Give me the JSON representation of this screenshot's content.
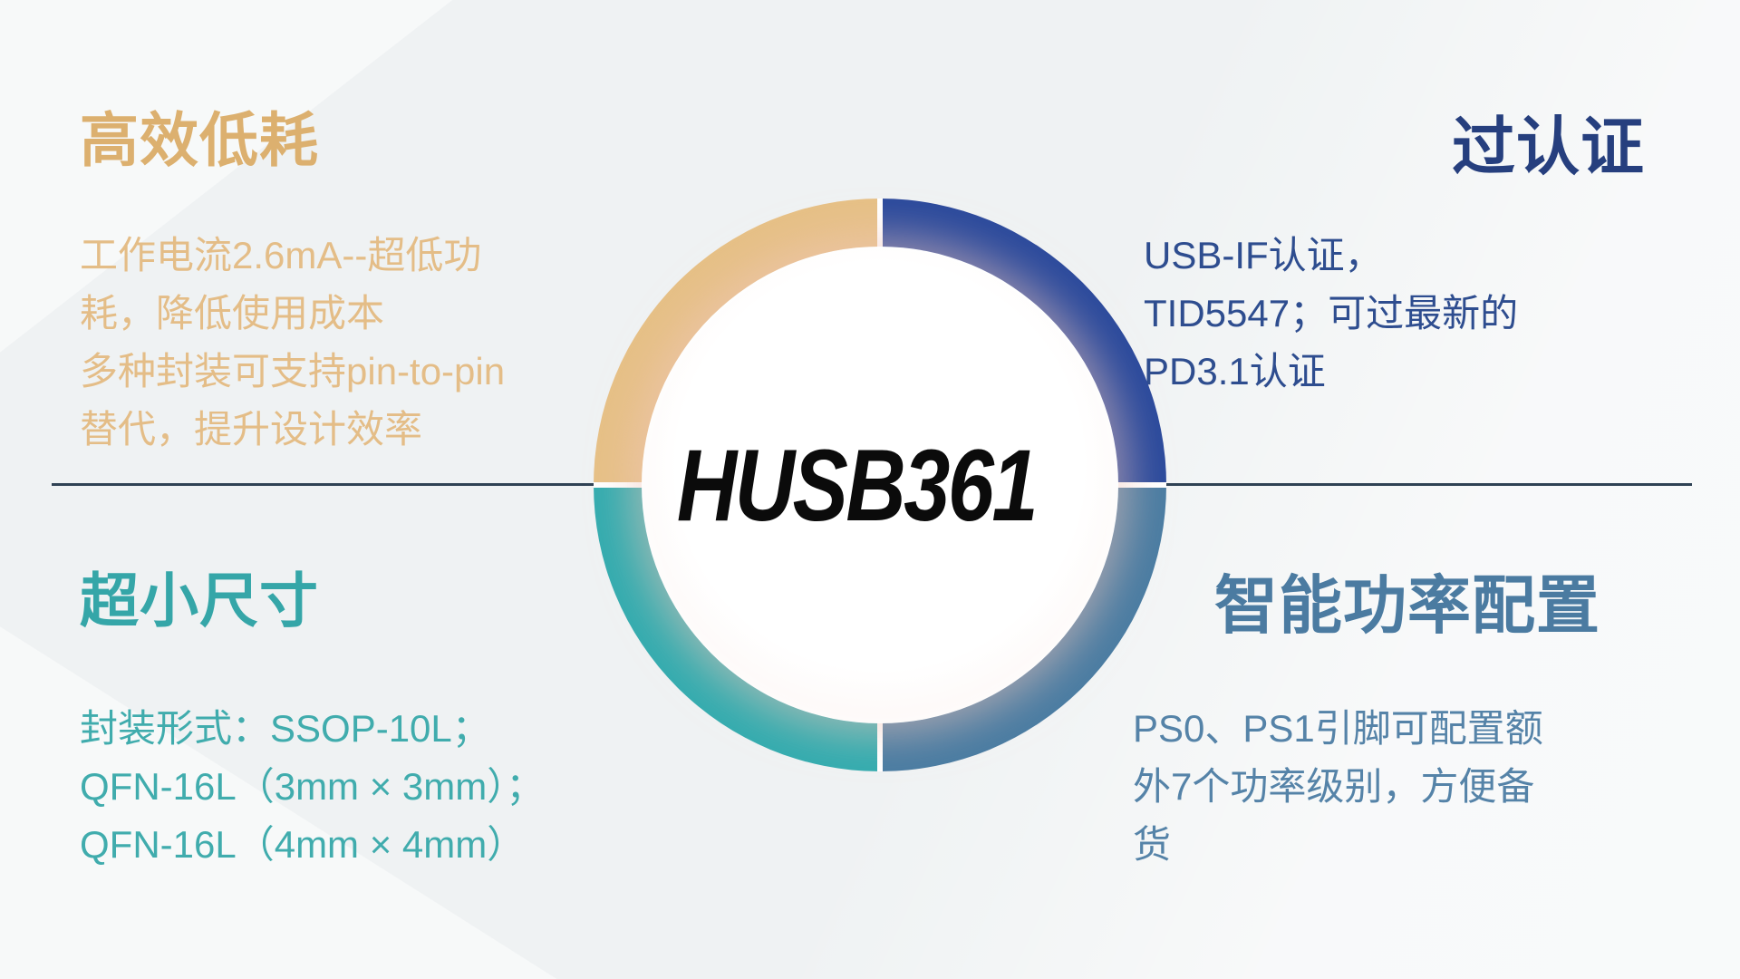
{
  "center_label": "HUSB361",
  "background_color": "#EFF2F3",
  "divider": {
    "color": "#2F4254"
  },
  "ring": {
    "gap_color": "#FFFFFF",
    "segments": [
      {
        "position": "top-left",
        "feature": "高效低耗",
        "color": "#E6C086"
      },
      {
        "position": "top-right",
        "feature": "过认证",
        "color": "#2B4A9C"
      },
      {
        "position": "bottom-left",
        "feature": "超小尺寸",
        "color": "#34ACAF"
      },
      {
        "position": "bottom-right",
        "feature": "智能功率配置",
        "color": "#4A7CA2"
      }
    ]
  },
  "quadrants": {
    "top_left": {
      "heading": "高效低耗",
      "heading_color": "#DCB06F",
      "text_color": "#E4BD87",
      "lines": [
        "工作电流2.6mA--超低功",
        "耗，降低使用成本",
        "多种封装可支持pin-to-pin",
        "替代，提升设计效率"
      ]
    },
    "top_right": {
      "heading": "过认证",
      "heading_color": "#263F7E",
      "text_color": "#2E4D8F",
      "lines": [
        "USB-IF认证，",
        "TID5547；可过最新的",
        "PD3.1认证"
      ]
    },
    "bottom_left": {
      "heading": "超小尺寸",
      "heading_color": "#35A6A8",
      "text_color": "#40ACAD",
      "lines": [
        "封装形式：SSOP-10L；",
        "QFN-16L（3mm × 3mm）；",
        "QFN-16L（4mm × 4mm）"
      ]
    },
    "bottom_right": {
      "heading": "智能功率配置",
      "heading_color": "#4B7BA1",
      "text_color": "#5583A8",
      "lines": [
        "PS0、PS1引脚可配置额",
        "外7个功率级别，方便备",
        "货"
      ]
    }
  }
}
